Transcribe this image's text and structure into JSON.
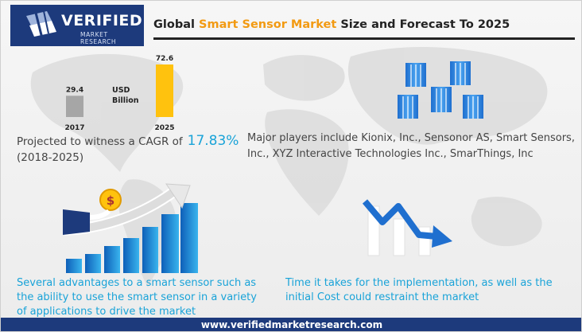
{
  "brand": {
    "name": "VERIFIED",
    "sub": "MARKET RESEARCH",
    "website": "www.verifiedmarketresearch.com"
  },
  "title": {
    "prefix": "Global ",
    "highlight": "Smart Sensor Market",
    "suffix": " Size and Forecast To 2025",
    "accent_color": "#f29a12"
  },
  "chart_data": {
    "type": "bar",
    "categories": [
      "2017",
      "2025"
    ],
    "values": [
      29.4,
      72.6
    ],
    "unit_label": "USD\nBillion",
    "colors": [
      "#a6a6a6",
      "#ffc20e"
    ],
    "ylim": [
      0,
      80
    ],
    "grid": false,
    "legend": "none"
  },
  "cagr": {
    "text": "Projected to witness a CAGR of",
    "value": "17.83%",
    "period": "(2018-2025)"
  },
  "players": {
    "text": "Major players include Kionix, Inc., Sensonor  AS, Smart Sensors, Inc., XYZ Interactive Technologies Inc., SmarThings, Inc"
  },
  "driver": {
    "text": "Several advantages to a smart sensor  such as  the ability to use the smart sensor in a variety of applications to drive the market"
  },
  "restraint": {
    "text": "Time it takes for the implementation, as well as the initial Cost could restraint  the  market"
  },
  "icons": {
    "buildings": "office-buildings-icon",
    "growth": "dollar-growth-arrow-icon",
    "decline": "downward-trend-arrow-icon"
  },
  "colors": {
    "navy": "#1d3a7c",
    "blue": "#19a3d8"
  }
}
